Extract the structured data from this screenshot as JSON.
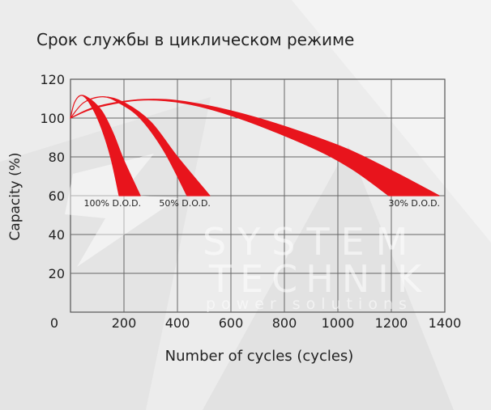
{
  "chart_data": {
    "type": "area",
    "title": "Срок службы в циклическом режиме",
    "xlabel": "Number of cycles (cycles)",
    "ylabel": "Capacity (%)",
    "xlim": [
      0,
      1400
    ],
    "ylim": [
      0,
      120
    ],
    "xticks": [
      0,
      200,
      400,
      600,
      800,
      1000,
      1200,
      1400
    ],
    "yticks": [
      20,
      40,
      60,
      80,
      100,
      120
    ],
    "grid": true,
    "color": "#e8141c",
    "series": [
      {
        "name": "100% D.O.D.",
        "upper": [
          [
            0,
            100
          ],
          [
            15,
            108
          ],
          [
            40,
            111.7
          ],
          [
            80,
            109
          ],
          [
            120,
            103
          ],
          [
            160,
            92
          ],
          [
            200,
            78
          ],
          [
            261,
            60
          ]
        ],
        "lower": [
          [
            0,
            100
          ],
          [
            15,
            108
          ],
          [
            40,
            111.7
          ],
          [
            70,
            108
          ],
          [
            110,
            97
          ],
          [
            150,
            80
          ],
          [
            182,
            60
          ]
        ]
      },
      {
        "name": "50% D.O.D.",
        "upper": [
          [
            0,
            100
          ],
          [
            50,
            108
          ],
          [
            121,
            111
          ],
          [
            200,
            108
          ],
          [
            300,
            98
          ],
          [
            400,
            80
          ],
          [
            521,
            60
          ]
        ],
        "lower": [
          [
            0,
            100
          ],
          [
            50,
            108
          ],
          [
            121,
            111
          ],
          [
            180,
            108
          ],
          [
            260,
            100
          ],
          [
            350,
            83
          ],
          [
            436,
            60
          ]
        ]
      },
      {
        "name": "30% D.O.D.",
        "upper": [
          [
            0,
            100
          ],
          [
            100,
            106
          ],
          [
            273,
            109.6
          ],
          [
            450,
            108
          ],
          [
            700,
            100
          ],
          [
            1000,
            86
          ],
          [
            1200,
            73
          ],
          [
            1379,
            60
          ]
        ],
        "lower": [
          [
            0,
            100
          ],
          [
            100,
            105.5
          ],
          [
            273,
            109.3
          ],
          [
            450,
            107
          ],
          [
            650,
            99
          ],
          [
            900,
            85
          ],
          [
            1050,
            74
          ],
          [
            1191,
            60
          ]
        ]
      }
    ]
  },
  "watermark": {
    "line1": "SYSTEM",
    "line2": "TECHNIK",
    "line3": "power solutions"
  }
}
